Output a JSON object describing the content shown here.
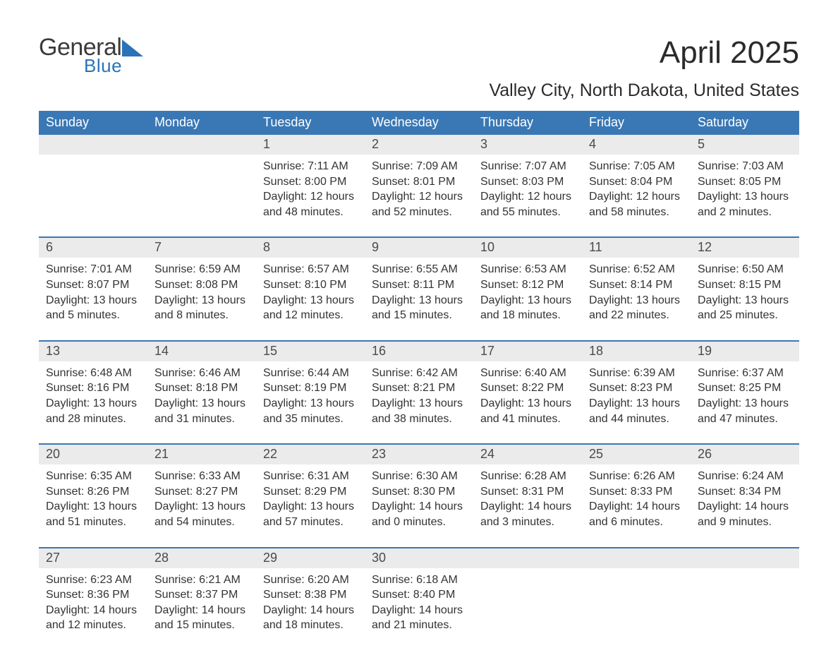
{
  "logo": {
    "general": "General",
    "blue": "Blue",
    "icon_color": "#2a73b8"
  },
  "title": "April 2025",
  "location": "Valley City, North Dakota, United States",
  "weekdays": [
    "Sunday",
    "Monday",
    "Tuesday",
    "Wednesday",
    "Thursday",
    "Friday",
    "Saturday"
  ],
  "header_bg": "#3a78b5",
  "header_fg": "#ffffff",
  "daynum_bg": "#ebebeb",
  "week_border": "#3a78b5",
  "text_color": "#333333",
  "body_fontsize": 16,
  "weeks": [
    [
      {
        "n": "",
        "lines": []
      },
      {
        "n": "",
        "lines": []
      },
      {
        "n": "1",
        "lines": [
          "Sunrise: 7:11 AM",
          "Sunset: 8:00 PM",
          "Daylight: 12 hours and 48 minutes."
        ]
      },
      {
        "n": "2",
        "lines": [
          "Sunrise: 7:09 AM",
          "Sunset: 8:01 PM",
          "Daylight: 12 hours and 52 minutes."
        ]
      },
      {
        "n": "3",
        "lines": [
          "Sunrise: 7:07 AM",
          "Sunset: 8:03 PM",
          "Daylight: 12 hours and 55 minutes."
        ]
      },
      {
        "n": "4",
        "lines": [
          "Sunrise: 7:05 AM",
          "Sunset: 8:04 PM",
          "Daylight: 12 hours and 58 minutes."
        ]
      },
      {
        "n": "5",
        "lines": [
          "Sunrise: 7:03 AM",
          "Sunset: 8:05 PM",
          "Daylight: 13 hours and 2 minutes."
        ]
      }
    ],
    [
      {
        "n": "6",
        "lines": [
          "Sunrise: 7:01 AM",
          "Sunset: 8:07 PM",
          "Daylight: 13 hours and 5 minutes."
        ]
      },
      {
        "n": "7",
        "lines": [
          "Sunrise: 6:59 AM",
          "Sunset: 8:08 PM",
          "Daylight: 13 hours and 8 minutes."
        ]
      },
      {
        "n": "8",
        "lines": [
          "Sunrise: 6:57 AM",
          "Sunset: 8:10 PM",
          "Daylight: 13 hours and 12 minutes."
        ]
      },
      {
        "n": "9",
        "lines": [
          "Sunrise: 6:55 AM",
          "Sunset: 8:11 PM",
          "Daylight: 13 hours and 15 minutes."
        ]
      },
      {
        "n": "10",
        "lines": [
          "Sunrise: 6:53 AM",
          "Sunset: 8:12 PM",
          "Daylight: 13 hours and 18 minutes."
        ]
      },
      {
        "n": "11",
        "lines": [
          "Sunrise: 6:52 AM",
          "Sunset: 8:14 PM",
          "Daylight: 13 hours and 22 minutes."
        ]
      },
      {
        "n": "12",
        "lines": [
          "Sunrise: 6:50 AM",
          "Sunset: 8:15 PM",
          "Daylight: 13 hours and 25 minutes."
        ]
      }
    ],
    [
      {
        "n": "13",
        "lines": [
          "Sunrise: 6:48 AM",
          "Sunset: 8:16 PM",
          "Daylight: 13 hours and 28 minutes."
        ]
      },
      {
        "n": "14",
        "lines": [
          "Sunrise: 6:46 AM",
          "Sunset: 8:18 PM",
          "Daylight: 13 hours and 31 minutes."
        ]
      },
      {
        "n": "15",
        "lines": [
          "Sunrise: 6:44 AM",
          "Sunset: 8:19 PM",
          "Daylight: 13 hours and 35 minutes."
        ]
      },
      {
        "n": "16",
        "lines": [
          "Sunrise: 6:42 AM",
          "Sunset: 8:21 PM",
          "Daylight: 13 hours and 38 minutes."
        ]
      },
      {
        "n": "17",
        "lines": [
          "Sunrise: 6:40 AM",
          "Sunset: 8:22 PM",
          "Daylight: 13 hours and 41 minutes."
        ]
      },
      {
        "n": "18",
        "lines": [
          "Sunrise: 6:39 AM",
          "Sunset: 8:23 PM",
          "Daylight: 13 hours and 44 minutes."
        ]
      },
      {
        "n": "19",
        "lines": [
          "Sunrise: 6:37 AM",
          "Sunset: 8:25 PM",
          "Daylight: 13 hours and 47 minutes."
        ]
      }
    ],
    [
      {
        "n": "20",
        "lines": [
          "Sunrise: 6:35 AM",
          "Sunset: 8:26 PM",
          "Daylight: 13 hours and 51 minutes."
        ]
      },
      {
        "n": "21",
        "lines": [
          "Sunrise: 6:33 AM",
          "Sunset: 8:27 PM",
          "Daylight: 13 hours and 54 minutes."
        ]
      },
      {
        "n": "22",
        "lines": [
          "Sunrise: 6:31 AM",
          "Sunset: 8:29 PM",
          "Daylight: 13 hours and 57 minutes."
        ]
      },
      {
        "n": "23",
        "lines": [
          "Sunrise: 6:30 AM",
          "Sunset: 8:30 PM",
          "Daylight: 14 hours and 0 minutes."
        ]
      },
      {
        "n": "24",
        "lines": [
          "Sunrise: 6:28 AM",
          "Sunset: 8:31 PM",
          "Daylight: 14 hours and 3 minutes."
        ]
      },
      {
        "n": "25",
        "lines": [
          "Sunrise: 6:26 AM",
          "Sunset: 8:33 PM",
          "Daylight: 14 hours and 6 minutes."
        ]
      },
      {
        "n": "26",
        "lines": [
          "Sunrise: 6:24 AM",
          "Sunset: 8:34 PM",
          "Daylight: 14 hours and 9 minutes."
        ]
      }
    ],
    [
      {
        "n": "27",
        "lines": [
          "Sunrise: 6:23 AM",
          "Sunset: 8:36 PM",
          "Daylight: 14 hours and 12 minutes."
        ]
      },
      {
        "n": "28",
        "lines": [
          "Sunrise: 6:21 AM",
          "Sunset: 8:37 PM",
          "Daylight: 14 hours and 15 minutes."
        ]
      },
      {
        "n": "29",
        "lines": [
          "Sunrise: 6:20 AM",
          "Sunset: 8:38 PM",
          "Daylight: 14 hours and 18 minutes."
        ]
      },
      {
        "n": "30",
        "lines": [
          "Sunrise: 6:18 AM",
          "Sunset: 8:40 PM",
          "Daylight: 14 hours and 21 minutes."
        ]
      },
      {
        "n": "",
        "lines": []
      },
      {
        "n": "",
        "lines": []
      },
      {
        "n": "",
        "lines": []
      }
    ]
  ]
}
